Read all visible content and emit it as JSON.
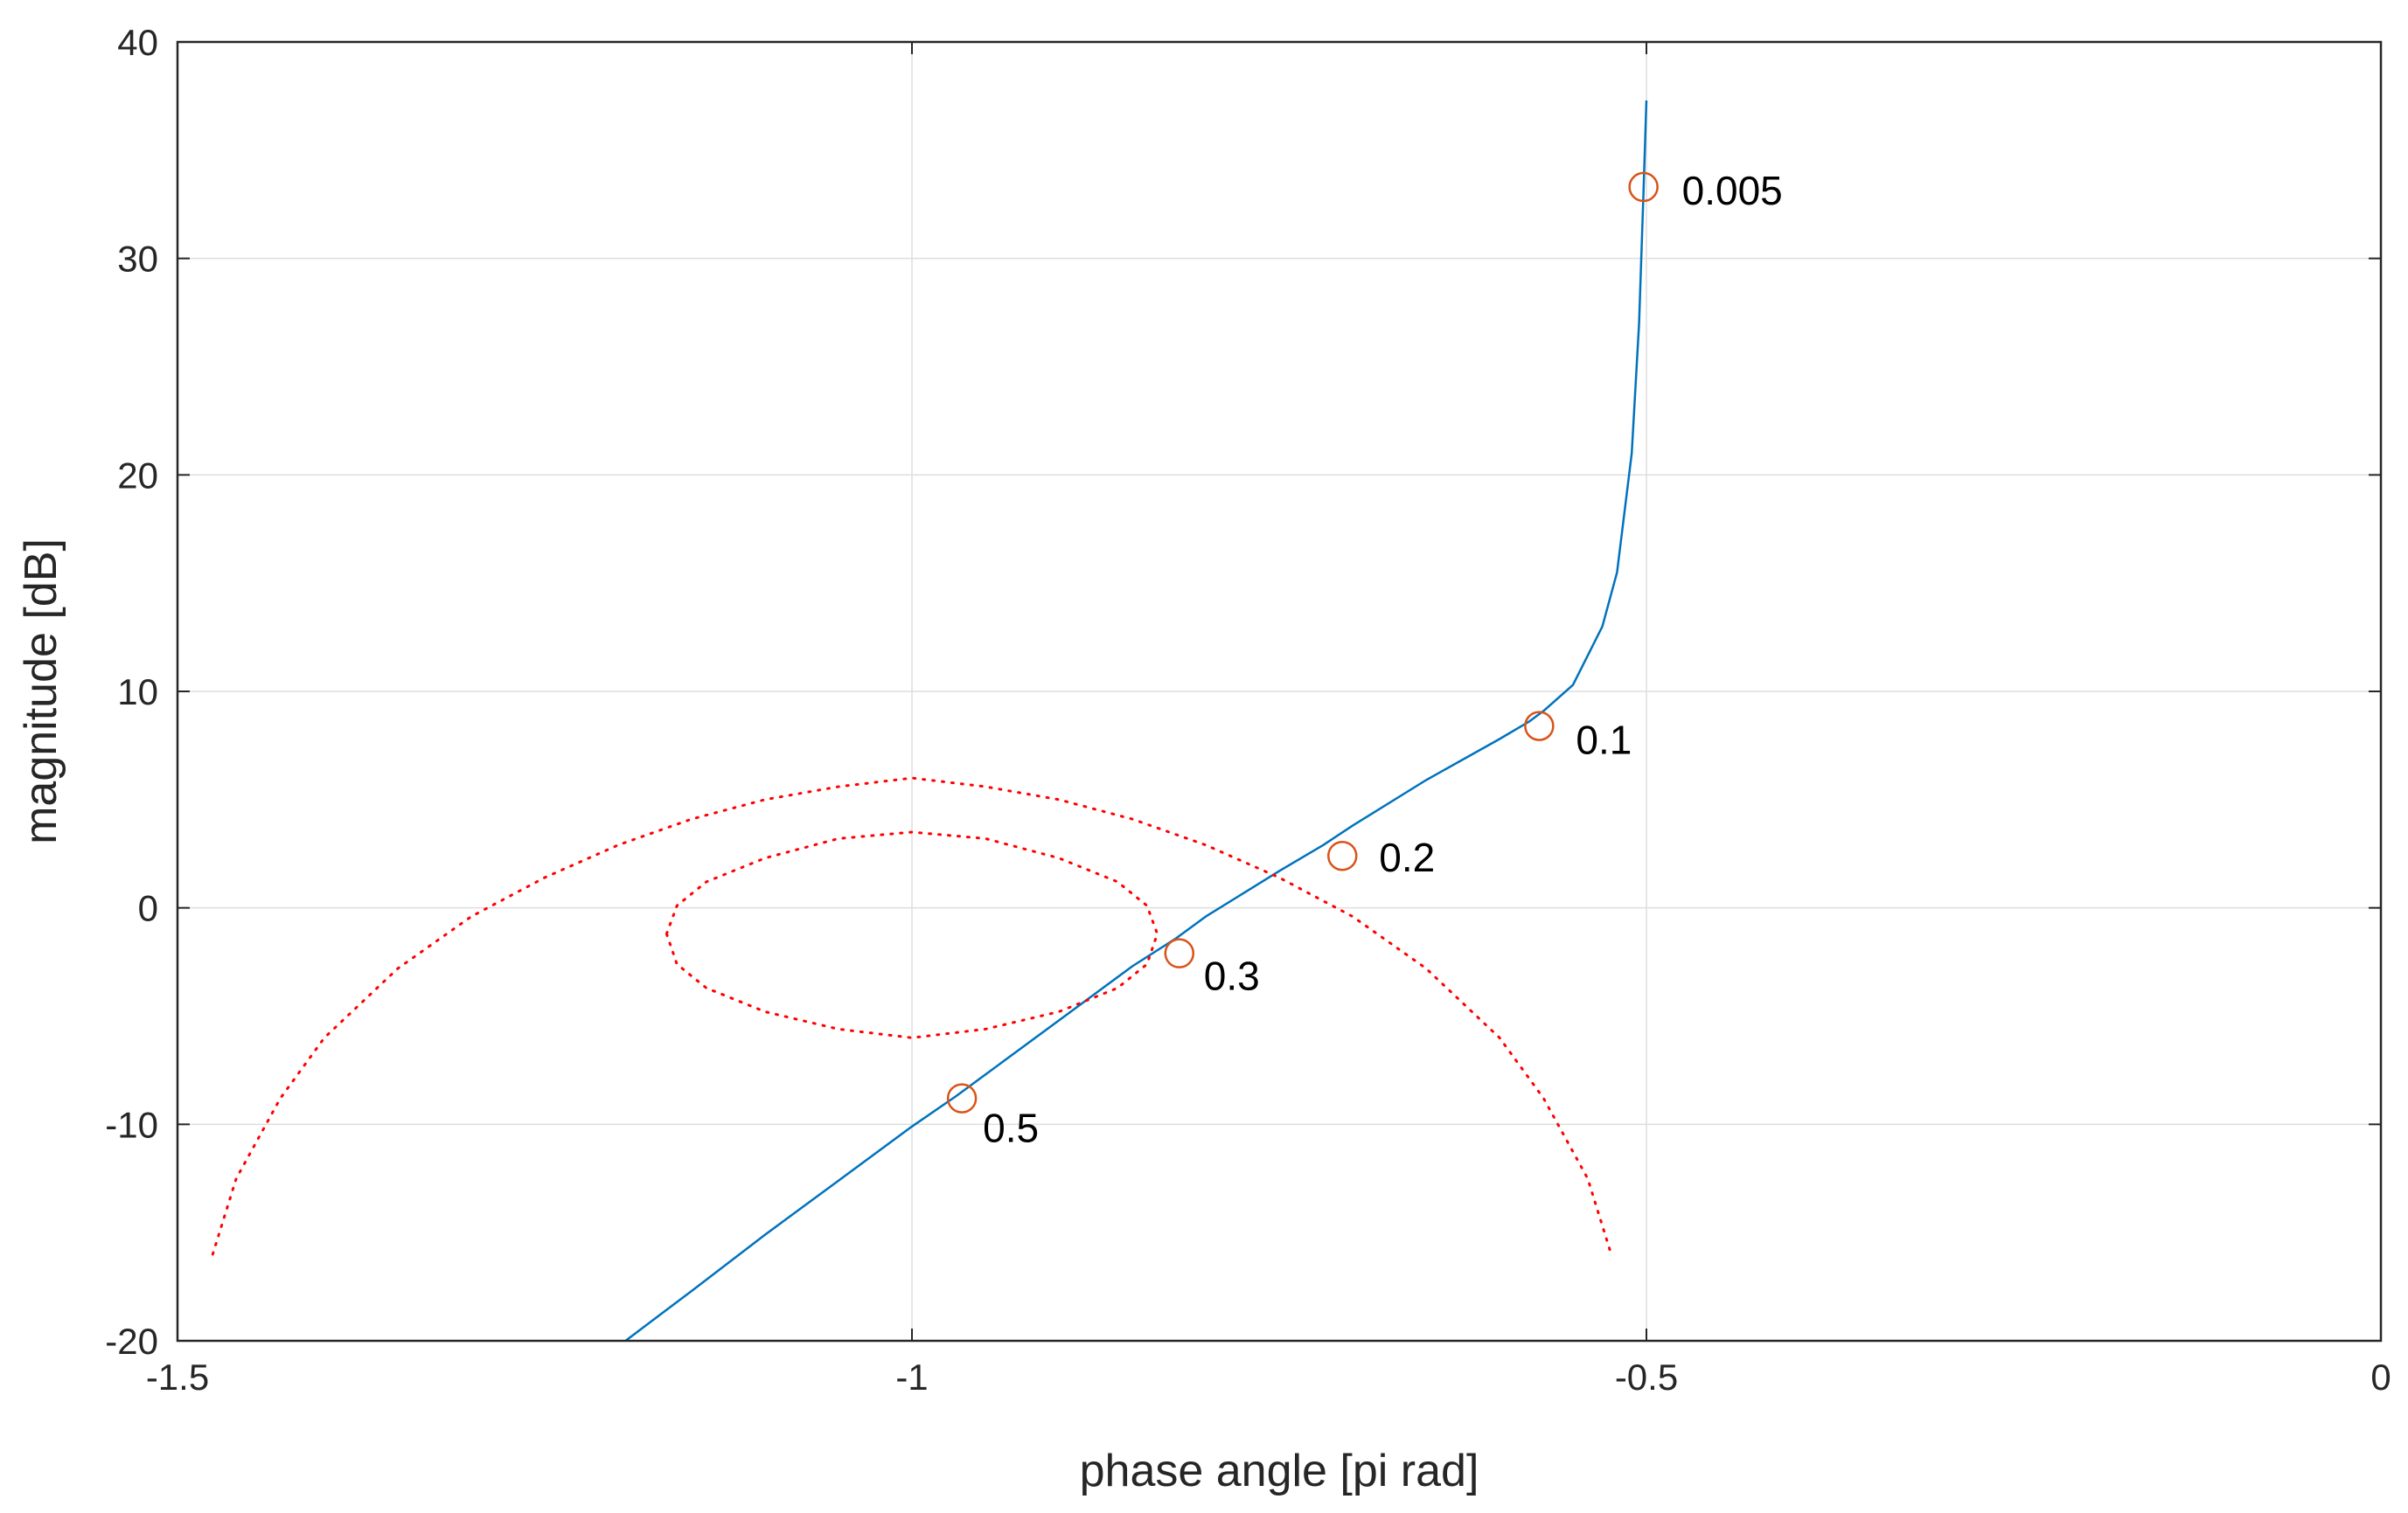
{
  "chart_data": {
    "type": "line",
    "title": "",
    "xlabel": "phase angle [pi rad]",
    "ylabel": "magnitude [dB]",
    "xlim": [
      -1.5,
      0
    ],
    "ylim": [
      -20,
      40
    ],
    "xticks": [
      -1.5,
      -1,
      -0.5,
      0
    ],
    "xtick_labels": [
      "-1.5",
      "-1",
      "-0.5",
      "0"
    ],
    "yticks": [
      -20,
      -10,
      0,
      10,
      20,
      30,
      40
    ],
    "ytick_labels": [
      "-20",
      "-10",
      "0",
      "10",
      "20",
      "30",
      "40"
    ],
    "grid": true,
    "colors": {
      "curve": "#0072BD",
      "markers": "#D95319",
      "contours": "#FF0000",
      "grid": "#DEDEDE",
      "axes": "#262626"
    },
    "series": [
      {
        "style": "solid",
        "points": [
          [
            -1.195,
            -20.0
          ],
          [
            -1.15,
            -17.7
          ],
          [
            -1.1,
            -15.1
          ],
          [
            -1.05,
            -12.6
          ],
          [
            -1.0,
            -10.1
          ],
          [
            -0.97,
            -8.7
          ],
          [
            -0.95,
            -7.7
          ],
          [
            -0.9,
            -5.2
          ],
          [
            -0.85,
            -2.7
          ],
          [
            -0.82,
            -1.4
          ],
          [
            -0.8,
            -0.4
          ],
          [
            -0.75,
            1.7
          ],
          [
            -0.72,
            2.9
          ],
          [
            -0.7,
            3.8
          ],
          [
            -0.65,
            5.9
          ],
          [
            -0.6,
            7.8
          ],
          [
            -0.58,
            8.6
          ],
          [
            -0.57,
            9.1
          ],
          [
            -0.55,
            10.3
          ],
          [
            -0.53,
            13.0
          ],
          [
            -0.52,
            15.5
          ],
          [
            -0.51,
            21.0
          ],
          [
            -0.505,
            27.0
          ],
          [
            -0.502,
            33.0
          ],
          [
            -0.5,
            37.3
          ]
        ]
      },
      {
        "style": "dotted",
        "points": [
          [
            -1.476,
            -16.0
          ],
          [
            -1.46,
            -12.5
          ],
          [
            -1.43,
            -8.8
          ],
          [
            -1.4,
            -6.0
          ],
          [
            -1.35,
            -2.8
          ],
          [
            -1.3,
            -0.4
          ],
          [
            -1.25,
            1.4
          ],
          [
            -1.2,
            2.9
          ],
          [
            -1.15,
            4.1
          ],
          [
            -1.1,
            5.0
          ],
          [
            -1.05,
            5.6
          ],
          [
            -1.0,
            6.0
          ],
          [
            -0.95,
            5.6
          ],
          [
            -0.9,
            5.0
          ],
          [
            -0.85,
            4.1
          ],
          [
            -0.8,
            2.9
          ],
          [
            -0.75,
            1.4
          ],
          [
            -0.7,
            -0.4
          ],
          [
            -0.65,
            -2.8
          ],
          [
            -0.6,
            -6.0
          ],
          [
            -0.57,
            -8.8
          ],
          [
            -0.54,
            -12.5
          ],
          [
            -0.524,
            -16.0
          ]
        ]
      },
      {
        "style": "dotted",
        "points": [
          [
            -1.167,
            -1.2
          ],
          [
            -1.16,
            0.1
          ],
          [
            -1.14,
            1.2
          ],
          [
            -1.1,
            2.3
          ],
          [
            -1.05,
            3.2
          ],
          [
            -1.0,
            3.5
          ],
          [
            -0.95,
            3.2
          ],
          [
            -0.9,
            2.3
          ],
          [
            -0.86,
            1.2
          ],
          [
            -0.84,
            0.1
          ],
          [
            -0.833,
            -1.2
          ],
          [
            -0.84,
            -2.6
          ],
          [
            -0.86,
            -3.7
          ],
          [
            -0.9,
            -4.8
          ],
          [
            -0.95,
            -5.6
          ],
          [
            -1.0,
            -6.0
          ],
          [
            -1.05,
            -5.6
          ],
          [
            -1.1,
            -4.8
          ],
          [
            -1.14,
            -3.7
          ],
          [
            -1.16,
            -2.6
          ],
          [
            -1.167,
            -1.2
          ]
        ]
      }
    ],
    "markers": [
      {
        "x": -0.502,
        "y": 33.3,
        "label": "0.005"
      },
      {
        "x": -0.573,
        "y": 8.4,
        "label": "0.1"
      },
      {
        "x": -0.707,
        "y": 2.4,
        "label": "0.2"
      },
      {
        "x": -0.818,
        "y": -2.1,
        "label": "0.3"
      },
      {
        "x": -0.966,
        "y": -8.8,
        "label": "0.5"
      }
    ]
  }
}
